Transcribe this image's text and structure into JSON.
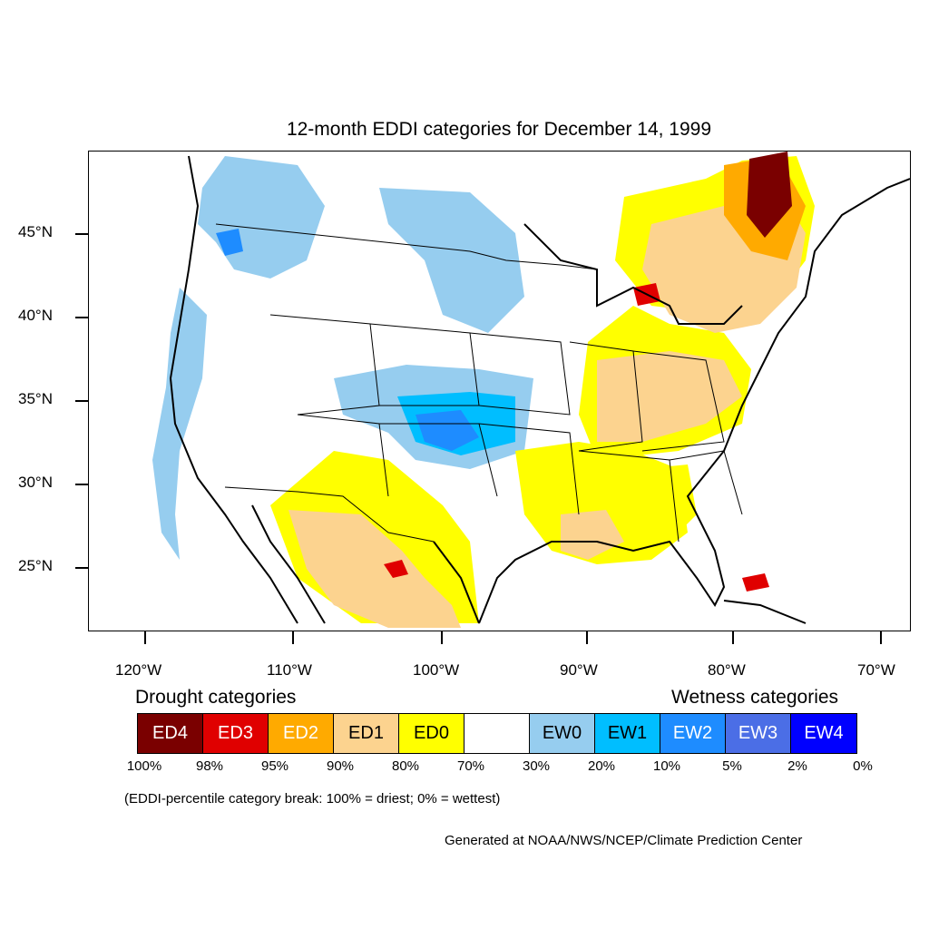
{
  "title": "12-month EDDI categories for December 14, 1999",
  "lat_labels": [
    "45°N",
    "40°N",
    "35°N",
    "30°N",
    "25°N"
  ],
  "lon_labels": [
    "120°W",
    "110°W",
    "100°W",
    "90°W",
    "80°W",
    "70°W"
  ],
  "legend": {
    "drought_heading": "Drought categories",
    "wetness_heading": "Wetness categories",
    "categories": [
      {
        "label": "ED4",
        "color": "#7a0000",
        "text_color": "#ffffff"
      },
      {
        "label": "ED3",
        "color": "#e00000",
        "text_color": "#ffffff"
      },
      {
        "label": "ED2",
        "color": "#ffaa00",
        "text_color": "#ffffff"
      },
      {
        "label": "ED1",
        "color": "#fcd38f",
        "text_color": "#000000"
      },
      {
        "label": "ED0",
        "color": "#ffff00",
        "text_color": "#000000"
      },
      {
        "label": "",
        "color": "#ffffff",
        "text_color": "#000000"
      },
      {
        "label": "EW0",
        "color": "#96cdef",
        "text_color": "#000000"
      },
      {
        "label": "EW1",
        "color": "#00beff",
        "text_color": "#000000"
      },
      {
        "label": "EW2",
        "color": "#1e8cff",
        "text_color": "#ffffff"
      },
      {
        "label": "EW3",
        "color": "#4b6ee6",
        "text_color": "#ffffff"
      },
      {
        "label": "EW4",
        "color": "#0000ff",
        "text_color": "#ffffff"
      }
    ],
    "percent_breaks": [
      "100%",
      "98%",
      "95%",
      "90%",
      "80%",
      "70%",
      "30%",
      "20%",
      "10%",
      "5%",
      "2%",
      "0%"
    ]
  },
  "note": "(EDDI-percentile category break: 100% = driest; 0% = wettest)",
  "credit": "Generated at NOAA/NWS/NCEP/Climate Prediction Center"
}
